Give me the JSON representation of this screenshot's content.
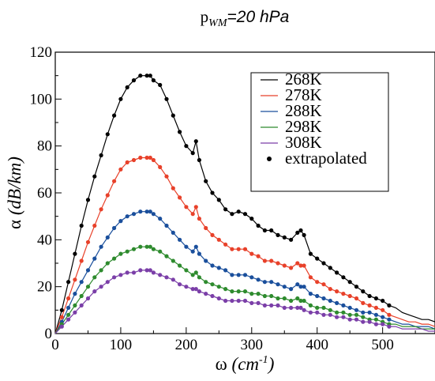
{
  "chart_data": {
    "type": "line",
    "title": {
      "prefix": "p",
      "subscript": "WM",
      "suffix": "=20 hPa"
    },
    "xlabel": {
      "symbol": "ω",
      "unit_open": " (cm",
      "unit_sup": "-1",
      "unit_close": ")"
    },
    "ylabel": {
      "symbol": "α",
      "unit": " (dB/km)"
    },
    "xlim": [
      0,
      580
    ],
    "ylim": [
      0,
      120
    ],
    "x_ticks": [
      0,
      100,
      200,
      300,
      400,
      500
    ],
    "y_ticks": [
      0,
      20,
      40,
      60,
      80,
      100,
      120
    ],
    "grid": false,
    "legend_position": "top-right",
    "x": [
      0,
      10,
      20,
      30,
      40,
      50,
      60,
      70,
      80,
      90,
      100,
      110,
      120,
      130,
      140,
      145,
      150,
      160,
      170,
      180,
      190,
      200,
      210,
      215,
      220,
      230,
      240,
      250,
      260,
      270,
      280,
      290,
      300,
      310,
      320,
      330,
      340,
      350,
      360,
      370,
      375,
      380,
      390,
      400,
      410,
      420,
      430,
      440,
      450,
      460,
      470,
      480,
      490,
      500,
      510,
      520,
      530,
      540,
      550,
      560,
      570,
      580
    ],
    "series": [
      {
        "name": "268K",
        "color": "#000000",
        "values": [
          0,
          10,
          22,
          34,
          46,
          57,
          67,
          76,
          85,
          93,
          100,
          105,
          108,
          110,
          110,
          110,
          108,
          106,
          100,
          93,
          86,
          80,
          77,
          82,
          74,
          65,
          60,
          57,
          53,
          51,
          52,
          51,
          49,
          46,
          44,
          44,
          42,
          41,
          40,
          43,
          44,
          42,
          34,
          32,
          30,
          28,
          26,
          24,
          22,
          20,
          18,
          16,
          15,
          14,
          12,
          11,
          9,
          8,
          7,
          6,
          6,
          5
        ]
      },
      {
        "name": "278K",
        "color": "#e8412a",
        "values": [
          0,
          7,
          15,
          23,
          31,
          39,
          46,
          53,
          59,
          65,
          70,
          73,
          74,
          75,
          75,
          75,
          74,
          71,
          67,
          62,
          58,
          54,
          51,
          54,
          49,
          45,
          42,
          40,
          38,
          36,
          36,
          36,
          34,
          33,
          31,
          31,
          30,
          29,
          28,
          30,
          29,
          29,
          24,
          22,
          21,
          19,
          18,
          17,
          16,
          15,
          13,
          12,
          11,
          10,
          8,
          7,
          6,
          5,
          5,
          4,
          4,
          3
        ]
      },
      {
        "name": "288K",
        "color": "#1a4f9c",
        "values": [
          0,
          5,
          11,
          17,
          22,
          27,
          32,
          37,
          41,
          45,
          48,
          50,
          51,
          52,
          52,
          52,
          51,
          49,
          46,
          43,
          40,
          37,
          35,
          37,
          34,
          31,
          29,
          28,
          27,
          25,
          25,
          25,
          24,
          23,
          22,
          22,
          21,
          20,
          19,
          21,
          20,
          20,
          17,
          16,
          15,
          14,
          13,
          12,
          11,
          10,
          9,
          9,
          8,
          7,
          6,
          5,
          4,
          4,
          3,
          3,
          3,
          2
        ]
      },
      {
        "name": "298K",
        "color": "#2e8b2e",
        "values": [
          0,
          4,
          8,
          12,
          16,
          20,
          24,
          27,
          30,
          32,
          34,
          35,
          36,
          37,
          37,
          37,
          36,
          35,
          33,
          31,
          29,
          27,
          25,
          26,
          24,
          22,
          21,
          20,
          19,
          18,
          18,
          18,
          17,
          17,
          16,
          16,
          15,
          15,
          14,
          15,
          14,
          14,
          12,
          11,
          11,
          10,
          9,
          9,
          8,
          8,
          7,
          6,
          6,
          5,
          4,
          4,
          3,
          3,
          3,
          2,
          2,
          2
        ]
      },
      {
        "name": "308K",
        "color": "#7b3fa8",
        "values": [
          0,
          3,
          6,
          9,
          12,
          15,
          18,
          20,
          22,
          24,
          25,
          26,
          26,
          27,
          27,
          27,
          26,
          25,
          24,
          23,
          21,
          20,
          19,
          19,
          18,
          17,
          16,
          15,
          14,
          14,
          14,
          14,
          13,
          13,
          12,
          12,
          12,
          11,
          11,
          11,
          11,
          10,
          9,
          9,
          8,
          8,
          7,
          7,
          6,
          6,
          5,
          5,
          4,
          4,
          3,
          3,
          2,
          2,
          2,
          2,
          1,
          1
        ]
      }
    ],
    "extrapolated": {
      "name": "extrapolated",
      "color": "#000000"
    }
  }
}
